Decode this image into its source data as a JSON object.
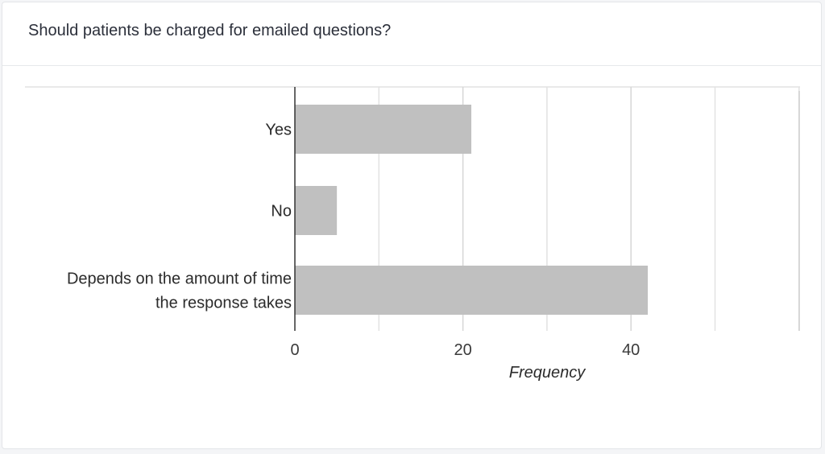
{
  "card": {
    "title": "Should patients be charged for emailed questions?"
  },
  "chart_data": {
    "type": "bar",
    "orientation": "horizontal",
    "categories": [
      [
        "Yes"
      ],
      [
        "No"
      ],
      [
        "Depends on the amount of time",
        "the response takes"
      ]
    ],
    "values": [
      21,
      5,
      42
    ],
    "xlabel": "Frequency",
    "xlim": [
      0,
      60
    ],
    "xticks": [
      0,
      20,
      40
    ],
    "grid_step": 10,
    "grid": true,
    "bar_color": "#c0c0c0",
    "grid_color": "#e2e2e2",
    "axis_color": "#333333"
  }
}
